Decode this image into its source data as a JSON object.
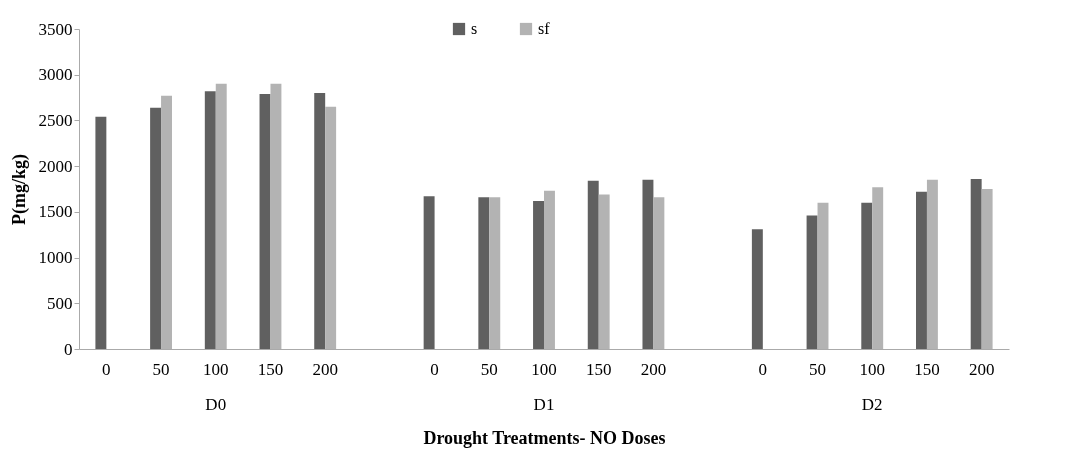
{
  "chart_data": {
    "type": "bar",
    "xlabel": "Drought Treatments- NO Doses",
    "ylabel": "P(mg/kg)",
    "categories": [
      "0",
      "50",
      "100",
      "150",
      "200",
      null,
      "0",
      "50",
      "100",
      "150",
      "200",
      null,
      "0",
      "50",
      "100",
      "150",
      "200"
    ],
    "series": [
      {
        "name": "s",
        "color": "#606060",
        "values": [
          2540,
          2640,
          2820,
          2790,
          2800,
          null,
          1670,
          1660,
          1620,
          1840,
          1850,
          null,
          1310,
          1460,
          1600,
          1720,
          1860
        ]
      },
      {
        "name": "sf",
        "color": "#b3b3b3",
        "values": [
          null,
          2770,
          2900,
          2900,
          2650,
          null,
          null,
          1660,
          1730,
          1690,
          1660,
          null,
          null,
          1600,
          1770,
          1850,
          1750
        ]
      }
    ],
    "ylim": [
      0,
      3500
    ],
    "yticks": [
      0,
      500,
      1000,
      1500,
      2000,
      2500,
      3000,
      3500
    ],
    "legend": "top",
    "annotations": [
      "D0",
      "D1",
      "D2"
    ]
  }
}
